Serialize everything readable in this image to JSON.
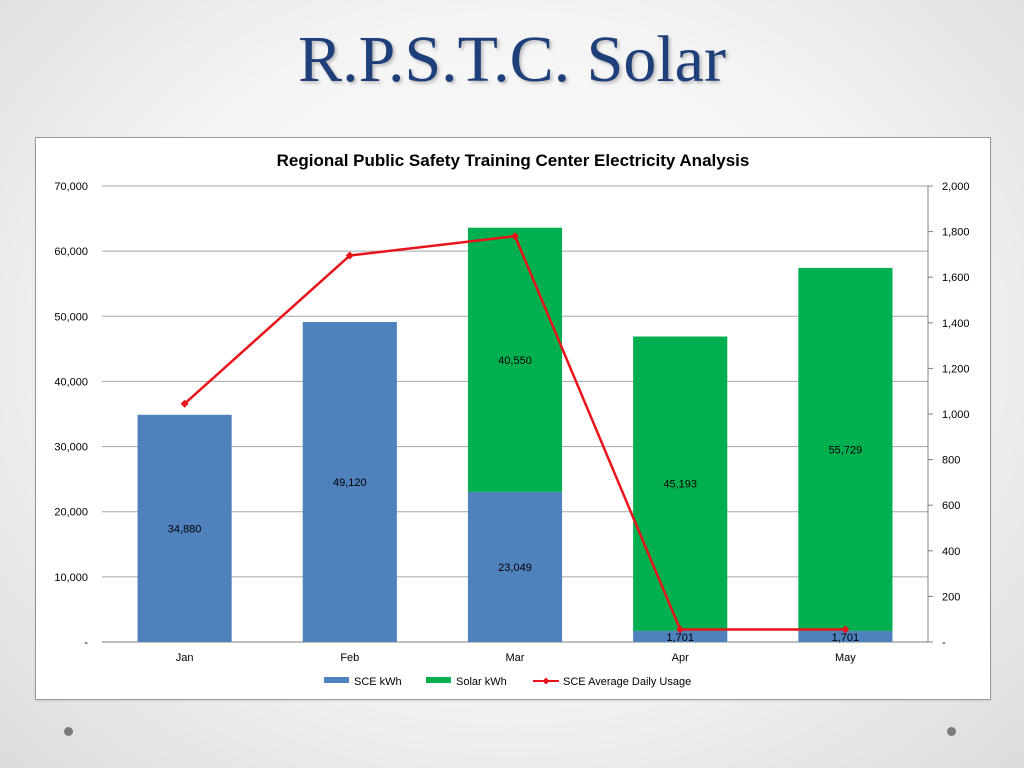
{
  "slide": {
    "title": "R.P.S.T.C. Solar"
  },
  "colors": {
    "title": "#1f3f7a",
    "sce": "#4f81bd",
    "solar": "#00b050",
    "line": "#e8141b",
    "axis": "#808080"
  },
  "chart_data": {
    "type": "bar",
    "title": "Regional Public Safety Training Center Electricity Analysis",
    "categories": [
      "Jan",
      "Feb",
      "Mar",
      "Apr",
      "May"
    ],
    "stacked": true,
    "series": [
      {
        "name": "SCE kWh",
        "axis": "left",
        "values": [
          34880,
          49120,
          23049,
          1701,
          1701
        ],
        "labels": [
          "34,880",
          "49,120",
          "23,049",
          "1,701",
          "1,701"
        ]
      },
      {
        "name": "Solar kWh",
        "axis": "left",
        "values": [
          0,
          0,
          40550,
          45193,
          55729
        ],
        "labels": [
          "",
          "",
          "40,550",
          "45,193",
          "55,729"
        ]
      },
      {
        "name": "SCE Average Daily Usage",
        "type": "line",
        "axis": "right",
        "values": [
          1045,
          1695,
          1780,
          55,
          55
        ]
      }
    ],
    "y_left": {
      "ylim": [
        0,
        70000
      ],
      "ticks": [
        "-",
        "10,000",
        "20,000",
        "30,000",
        "40,000",
        "50,000",
        "60,000",
        "70,000"
      ]
    },
    "y_right": {
      "ylim": [
        0,
        2000
      ],
      "ticks": [
        "-",
        "200",
        "400",
        "600",
        "800",
        "1,000",
        "1,200",
        "1,400",
        "1,600",
        "1,800",
        "2,000"
      ]
    },
    "grid": true,
    "legend": "bottom"
  }
}
